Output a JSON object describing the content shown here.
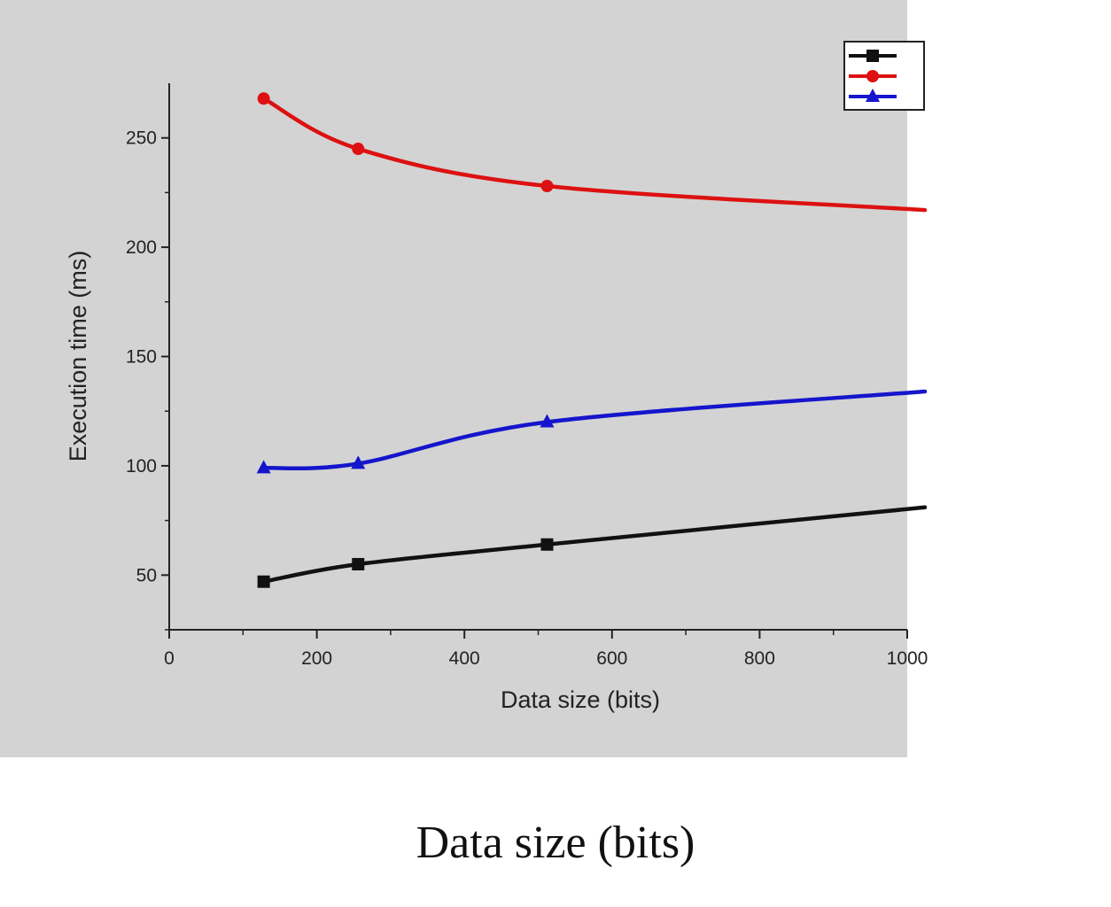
{
  "chart_data": {
    "type": "line",
    "xlabel": "Data size (bits)",
    "ylabel": "Execution time (ms)",
    "xlim": [
      0,
      1000
    ],
    "ylim": [
      25,
      275
    ],
    "x_ticks": [
      0,
      200,
      400,
      600,
      800,
      1000
    ],
    "y_ticks": [
      50,
      100,
      150,
      200,
      250
    ],
    "legend_position": "top-right",
    "grid": false,
    "series": [
      {
        "color": "#111111",
        "marker": "square",
        "x": [
          128,
          256,
          512,
          1024
        ],
        "values": [
          47,
          55,
          64,
          81
        ]
      },
      {
        "color": "#dd1111",
        "marker": "circle",
        "x": [
          128,
          256,
          512,
          1024
        ],
        "values": [
          268,
          245,
          228,
          217
        ]
      },
      {
        "color": "#1515cc",
        "marker": "triangle",
        "x": [
          128,
          256,
          512,
          1024
        ],
        "values": [
          99,
          101,
          120,
          134
        ]
      }
    ]
  },
  "caption": "Data size (bits)"
}
